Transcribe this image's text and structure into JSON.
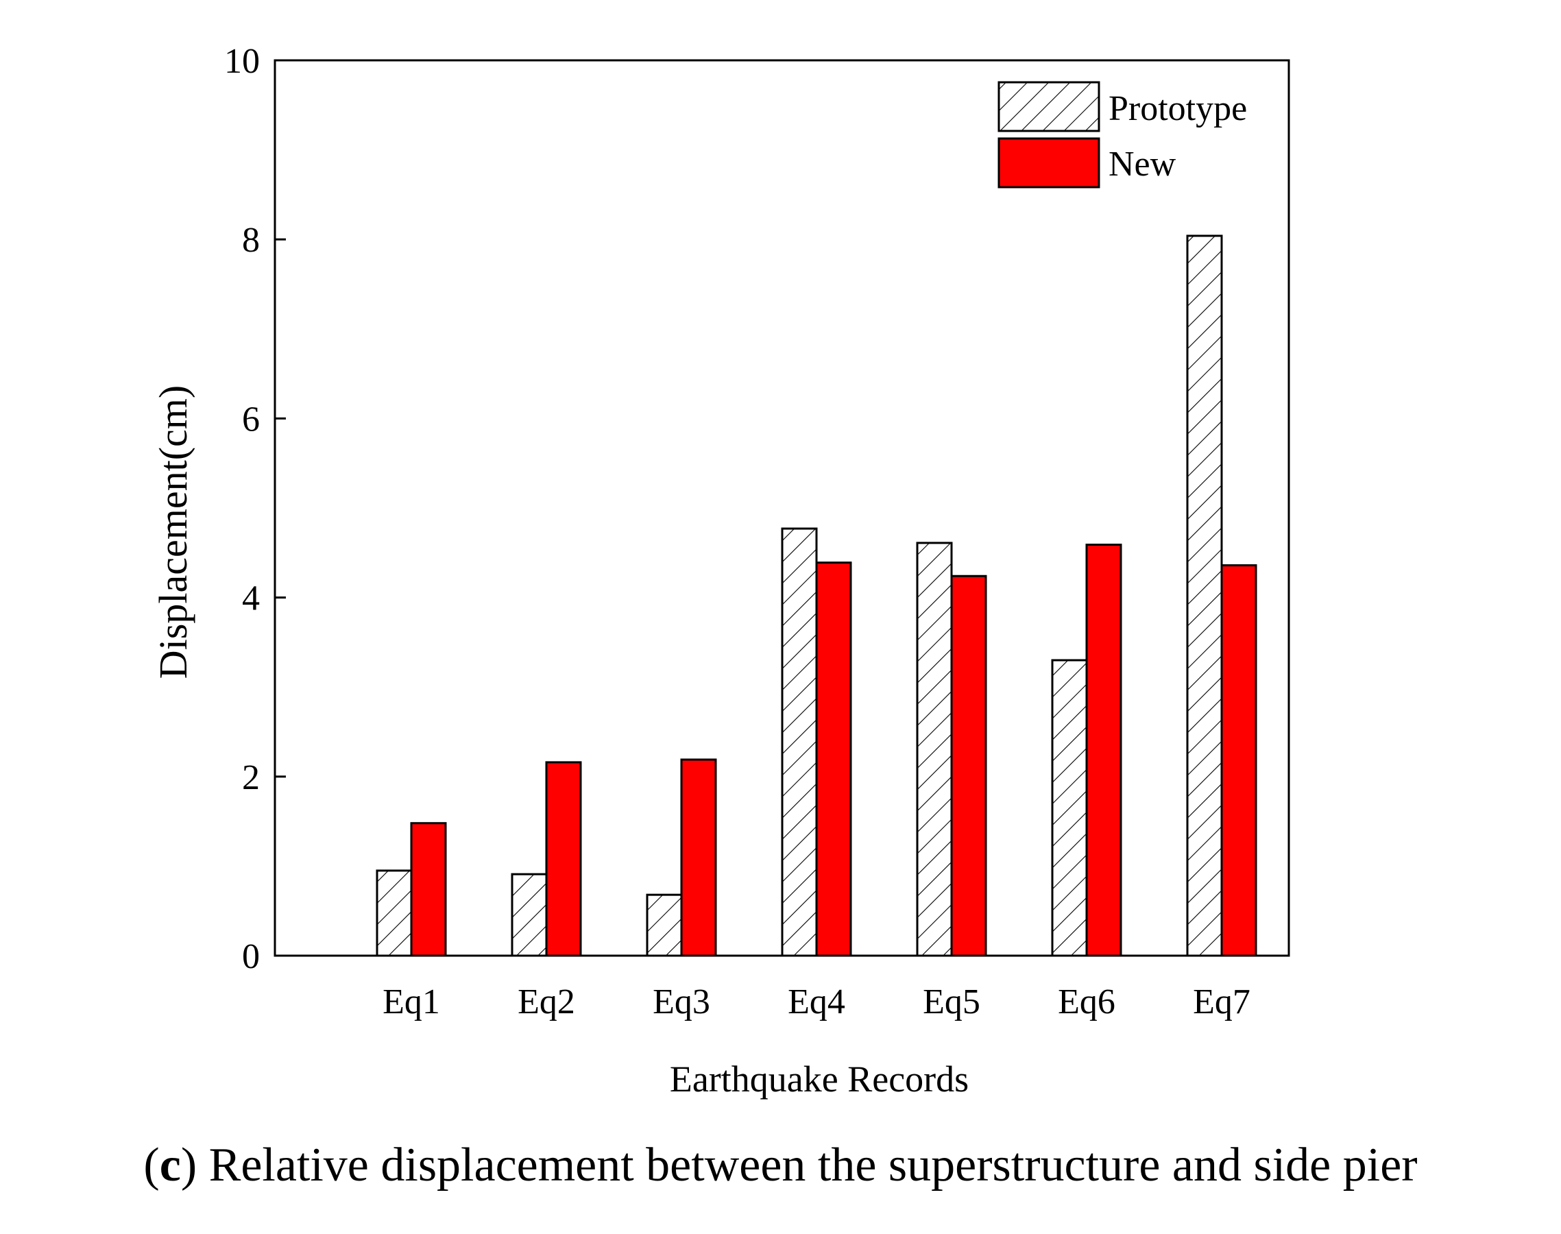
{
  "chart_data": {
    "type": "bar",
    "categories": [
      "Eq1",
      "Eq2",
      "Eq3",
      "Eq4",
      "Eq5",
      "Eq6",
      "Eq7"
    ],
    "series": [
      {
        "name": "Prototype",
        "values": [
          0.95,
          0.91,
          0.68,
          4.77,
          4.61,
          3.3,
          8.04
        ],
        "fill": "hatch",
        "color": "#000000"
      },
      {
        "name": "New",
        "values": [
          1.48,
          2.16,
          2.19,
          4.39,
          4.24,
          4.59,
          4.36
        ],
        "fill": "solid",
        "color": "#ff0000"
      }
    ],
    "xlabel": "Earthquake Records",
    "ylabel": "Displacement(cm)",
    "ylim": [
      0,
      10
    ],
    "yticks": [
      "0",
      "2",
      "4",
      "6",
      "8",
      "10"
    ],
    "grid": false,
    "legend_position": "top-right"
  },
  "caption": {
    "open_paren": "(",
    "label": "c",
    "text": ") Relative displacement between the superstructure and side pier"
  }
}
